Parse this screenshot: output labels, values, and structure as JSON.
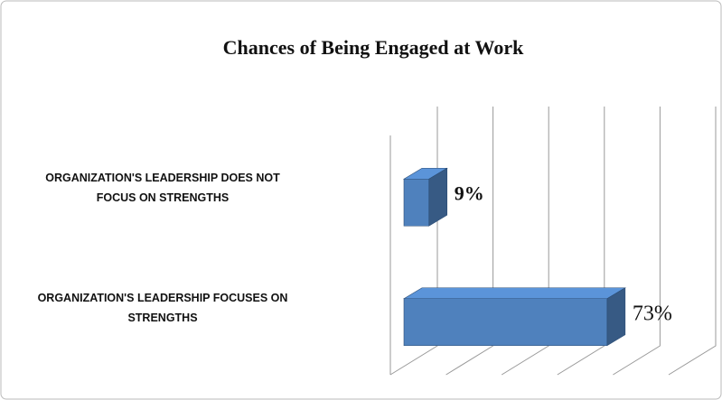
{
  "chart_data": {
    "type": "bar3d",
    "orientation": "horizontal",
    "title": "Chances of Being Engaged at Work",
    "categories": [
      "ORGANIZATION'S LEADERSHIP DOES NOT FOCUS ON STRENGTHS",
      "ORGANIZATION'S LEADERSHIP FOCUSES ON STRENGTHS"
    ],
    "values": [
      9,
      73
    ],
    "value_labels": [
      "9%",
      "73%"
    ],
    "color": "#4f81bd",
    "xlim": [
      0,
      100
    ],
    "xticks": [
      0,
      20,
      40,
      60,
      80,
      100
    ],
    "grid": true
  }
}
